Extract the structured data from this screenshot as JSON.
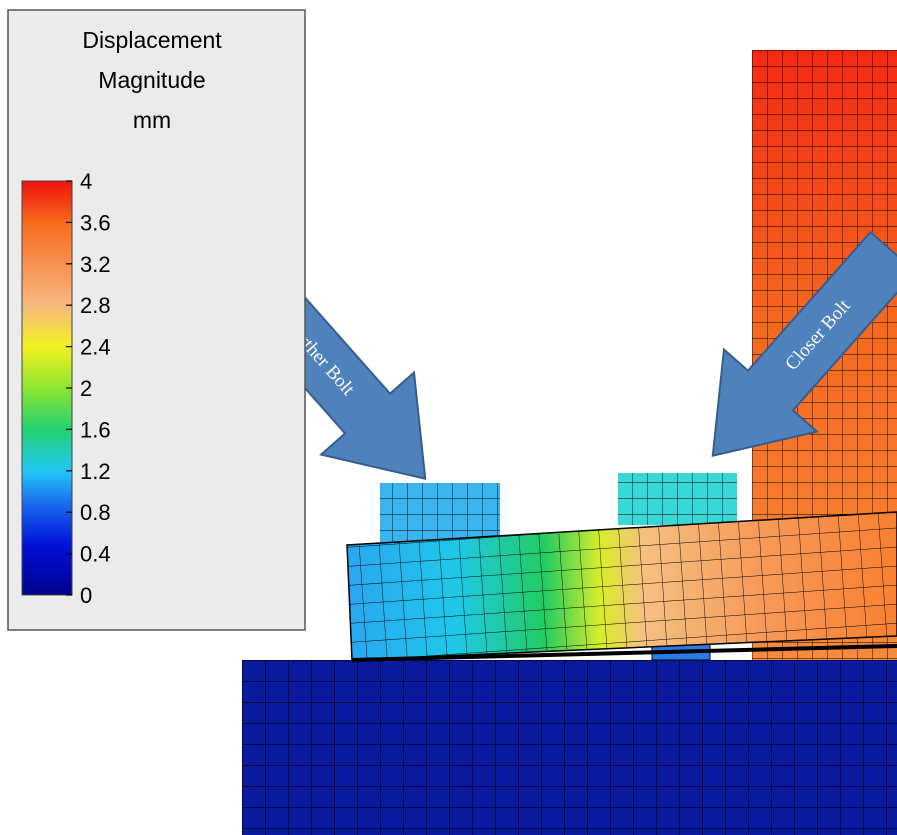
{
  "legend": {
    "title": [
      "Displacement",
      "Magnitude",
      "mm"
    ],
    "ticks": [
      4,
      3.6,
      3.2,
      2.8,
      2.4,
      2,
      1.6,
      1.2,
      0.8,
      0.4,
      0
    ]
  },
  "annotations": [
    "Farther Bolt",
    "Closer Bolt"
  ]
}
